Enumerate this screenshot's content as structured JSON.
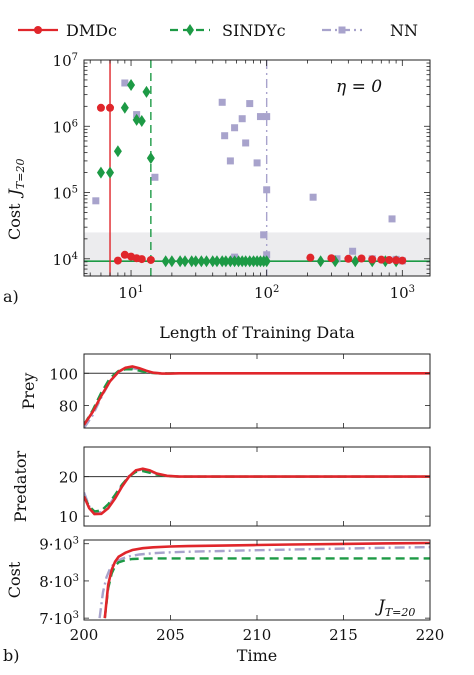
{
  "colors": {
    "dmdc": "#e0262b",
    "sindyc": "#1d9a45",
    "nn": "#a8a3cc",
    "shade": "#ececee",
    "ref_line": "#333333"
  },
  "legend": [
    {
      "label": "DMDc",
      "color": "#e0262b",
      "marker": "circle",
      "dash": "solid"
    },
    {
      "label": "SINDYc",
      "color": "#1d9a45",
      "marker": "diamond",
      "dash": "dashed"
    },
    {
      "label": "NN",
      "color": "#a8a3cc",
      "marker": "square",
      "dash": "dashdot"
    }
  ],
  "chart_data": [
    {
      "type": "scatter",
      "panel_label": "a)",
      "annotation": "η = 0",
      "xlabel": "Length of Training Data",
      "ylabel": "Cost",
      "ylabel_math": "J",
      "ylabel_sub": "T=20",
      "xscale": "log",
      "yscale": "log",
      "xlim": [
        4.5,
        1600
      ],
      "ylim": [
        5500,
        10000000
      ],
      "xticks": [
        10,
        100,
        1000
      ],
      "xtick_labels": [
        {
          "base": "10",
          "exp": "1"
        },
        {
          "base": "10",
          "exp": "2"
        },
        {
          "base": "10",
          "exp": "3"
        }
      ],
      "yticks": [
        10000,
        100000,
        1000000,
        10000000
      ],
      "ytick_labels": [
        {
          "base": "10",
          "exp": "4"
        },
        {
          "base": "10",
          "exp": "5"
        },
        {
          "base": "10",
          "exp": "6"
        },
        {
          "base": "10",
          "exp": "7"
        }
      ],
      "shaded_band": [
        5500,
        25000
      ],
      "reference_cost": 9200,
      "vertical_lines": [
        {
          "series": "DMDc",
          "x": 7
        },
        {
          "series": "SINDYc",
          "x": 14
        },
        {
          "series": "NN",
          "x": 100
        }
      ],
      "series": [
        {
          "name": "DMDc",
          "points": [
            [
              6,
              1900000
            ],
            [
              7,
              1900000
            ],
            [
              8,
              9400
            ],
            [
              9,
              11500
            ],
            [
              10,
              10800
            ],
            [
              11,
              10200
            ],
            [
              12,
              9900
            ],
            [
              14,
              9600
            ],
            [
              210,
              10400
            ],
            [
              300,
              10200
            ],
            [
              400,
              10000
            ],
            [
              500,
              10100
            ],
            [
              600,
              9800
            ],
            [
              700,
              9700
            ],
            [
              800,
              9600
            ],
            [
              900,
              9500
            ],
            [
              1000,
              9400
            ]
          ]
        },
        {
          "name": "SINDYc",
          "points": [
            [
              6,
              200000
            ],
            [
              7,
              200000
            ],
            [
              8,
              420000
            ],
            [
              9,
              1900000
            ],
            [
              10,
              4200000
            ],
            [
              11,
              1250000
            ],
            [
              12,
              1200000
            ],
            [
              13,
              3300000
            ],
            [
              14,
              330000
            ],
            [
              18,
              9200
            ],
            [
              20,
              9200
            ],
            [
              23,
              9200
            ],
            [
              25,
              9200
            ],
            [
              28,
              9200
            ],
            [
              30,
              9200
            ],
            [
              33,
              9200
            ],
            [
              36,
              9200
            ],
            [
              40,
              9200
            ],
            [
              43,
              9200
            ],
            [
              47,
              9200
            ],
            [
              50,
              9200
            ],
            [
              54,
              9200
            ],
            [
              58,
              9200
            ],
            [
              62,
              9200
            ],
            [
              66,
              9200
            ],
            [
              70,
              9200
            ],
            [
              75,
              9200
            ],
            [
              80,
              9200
            ],
            [
              85,
              9200
            ],
            [
              90,
              9200
            ],
            [
              95,
              9200
            ],
            [
              100,
              9200
            ],
            [
              250,
              9200
            ],
            [
              320,
              9200
            ],
            [
              450,
              9200
            ],
            [
              600,
              9200
            ],
            [
              750,
              9200
            ],
            [
              900,
              9200
            ]
          ]
        },
        {
          "name": "NN",
          "points": [
            [
              5.5,
              75000
            ],
            [
              9,
              4500000
            ],
            [
              11,
              1500000
            ],
            [
              15,
              170000
            ],
            [
              47,
              2300000
            ],
            [
              49,
              720000
            ],
            [
              54,
              300000
            ],
            [
              58,
              10600
            ],
            [
              58,
              950000
            ],
            [
              66,
              1300000
            ],
            [
              70,
              560000
            ],
            [
              75,
              2200000
            ],
            [
              85,
              280000
            ],
            [
              90,
              1400000
            ],
            [
              95,
              23000
            ],
            [
              100,
              110000
            ],
            [
              100,
              1400000
            ],
            [
              100,
              11500
            ],
            [
              220,
              85000
            ],
            [
              330,
              10000
            ],
            [
              430,
              13000
            ],
            [
              600,
              10000
            ],
            [
              750,
              9500
            ],
            [
              840,
              40000
            ],
            [
              900,
              9800
            ],
            [
              1000,
              9300
            ]
          ]
        }
      ]
    },
    {
      "type": "line",
      "panel_label": "",
      "ylabel": "Prey",
      "xlim": [
        200,
        220
      ],
      "ylim": [
        66,
        112
      ],
      "yticks": [
        80,
        100
      ],
      "ytick_labels": [
        "80",
        "100"
      ],
      "reference_y": 100,
      "series": [
        {
          "name": "DMDc",
          "x": [
            200,
            200.5,
            201,
            201.5,
            202,
            202.4,
            202.8,
            203.2,
            203.6,
            204,
            204.5,
            205,
            205.5,
            206,
            207,
            208,
            210,
            212,
            215,
            218,
            220
          ],
          "y": [
            68,
            76,
            86,
            95,
            101,
            103.5,
            104.2,
            103.2,
            101.6,
            100.4,
            99.8,
            99.8,
            100,
            100,
            100,
            100,
            100,
            100,
            100,
            100,
            100
          ]
        },
        {
          "name": "SINDYc",
          "x": [
            200,
            200.5,
            201,
            201.5,
            202,
            202.4,
            202.8,
            203.2,
            203.6,
            204,
            204.5,
            205,
            206,
            208,
            210,
            215,
            220
          ],
          "y": [
            68,
            77,
            88,
            97,
            101.5,
            102.5,
            102.5,
            101.6,
            100.6,
            100.1,
            99.9,
            100,
            100,
            100,
            100,
            100,
            100
          ]
        },
        {
          "name": "NN",
          "x": [
            200,
            200.5,
            201,
            201.5,
            202,
            202.4,
            202.8,
            203.2,
            203.6,
            204,
            204.5,
            205,
            206,
            208,
            210,
            215,
            220
          ],
          "y": [
            66,
            74,
            85,
            95,
            101,
            102.8,
            103.2,
            102.4,
            101.2,
            100.4,
            100,
            100,
            100,
            100,
            100,
            100,
            100
          ]
        }
      ]
    },
    {
      "type": "line",
      "panel_label": "",
      "ylabel": "Predator",
      "xlim": [
        200,
        220
      ],
      "ylim": [
        7.5,
        27.5
      ],
      "yticks": [
        10,
        20
      ],
      "ytick_labels": [
        "10",
        "20"
      ],
      "reference_y": 20,
      "series": [
        {
          "name": "DMDc",
          "x": [
            200,
            200.3,
            200.6,
            201,
            201.4,
            201.8,
            202.2,
            202.6,
            203,
            203.4,
            203.8,
            204.2,
            204.8,
            205.5,
            206,
            207,
            208,
            210,
            215,
            220
          ],
          "y": [
            15,
            12,
            10.5,
            10.6,
            12,
            14.5,
            17.5,
            20,
            21.6,
            22,
            21.6,
            20.8,
            20.2,
            20,
            20,
            20,
            20,
            20,
            20,
            20
          ]
        },
        {
          "name": "SINDYc",
          "x": [
            200,
            200.3,
            200.6,
            201,
            201.4,
            201.8,
            202.2,
            202.6,
            203,
            203.4,
            203.8,
            204.2,
            204.8,
            205.5,
            206,
            207,
            208,
            210,
            215,
            220
          ],
          "y": [
            15,
            12.5,
            11.2,
            11.4,
            13,
            15.4,
            18,
            20,
            21.2,
            21.4,
            21,
            20.5,
            20.1,
            20,
            20,
            20,
            20,
            20,
            20,
            20
          ]
        },
        {
          "name": "NN",
          "x": [
            200,
            200.3,
            200.6,
            201,
            201.4,
            201.8,
            202.2,
            202.6,
            203,
            203.4,
            203.8,
            204.2,
            204.8,
            205.5,
            206,
            207,
            208,
            210,
            215,
            220
          ],
          "y": [
            16,
            12.5,
            10.9,
            11,
            12.6,
            15,
            17.8,
            20.2,
            21.5,
            21.8,
            21.4,
            20.7,
            20.2,
            20,
            20,
            20,
            20,
            20,
            20,
            20
          ]
        }
      ]
    },
    {
      "type": "line",
      "panel_label": "b)",
      "ylabel": "Cost",
      "xlabel": "Time",
      "annotation_math": "J",
      "annotation_sub": "T=20",
      "xlim": [
        200,
        220
      ],
      "xticks": [
        200,
        205,
        210,
        215,
        220
      ],
      "xtick_labels": [
        "200",
        "205",
        "210",
        "215",
        "220"
      ],
      "ylim": [
        6950,
        9100
      ],
      "yticks": [
        7000,
        8000,
        9000
      ],
      "ytick_labels": [
        {
          "base": "7",
          "exp": "3"
        },
        {
          "base": "8",
          "exp": "3"
        },
        {
          "base": "9",
          "exp": "3"
        }
      ],
      "series": [
        {
          "name": "DMDc",
          "x": [
            201.2,
            201.4,
            201.6,
            201.8,
            202,
            202.4,
            202.8,
            203.4,
            204,
            205,
            206,
            208,
            210,
            212,
            215,
            218,
            220
          ],
          "y": [
            7000,
            7900,
            8300,
            8520,
            8650,
            8760,
            8830,
            8880,
            8905,
            8925,
            8935,
            8950,
            8965,
            8980,
            8995,
            9010,
            9020
          ]
        },
        {
          "name": "SINDYc",
          "x": [
            201.2,
            201.4,
            201.6,
            201.8,
            202,
            202.4,
            202.8,
            203.4,
            204,
            205,
            206,
            208,
            210,
            212,
            215,
            218,
            220
          ],
          "y": [
            7000,
            7800,
            8200,
            8400,
            8500,
            8560,
            8590,
            8600,
            8605,
            8605,
            8605,
            8605,
            8605,
            8605,
            8605,
            8605,
            8605
          ]
        },
        {
          "name": "NN",
          "x": [
            200.9,
            201.1,
            201.3,
            201.5,
            201.8,
            202.2,
            202.6,
            203.2,
            204,
            205,
            206,
            208,
            210,
            212,
            215,
            218,
            220
          ],
          "y": [
            7000,
            7700,
            8100,
            8330,
            8500,
            8600,
            8660,
            8710,
            8745,
            8770,
            8785,
            8805,
            8825,
            8845,
            8870,
            8895,
            8910
          ]
        }
      ]
    }
  ]
}
